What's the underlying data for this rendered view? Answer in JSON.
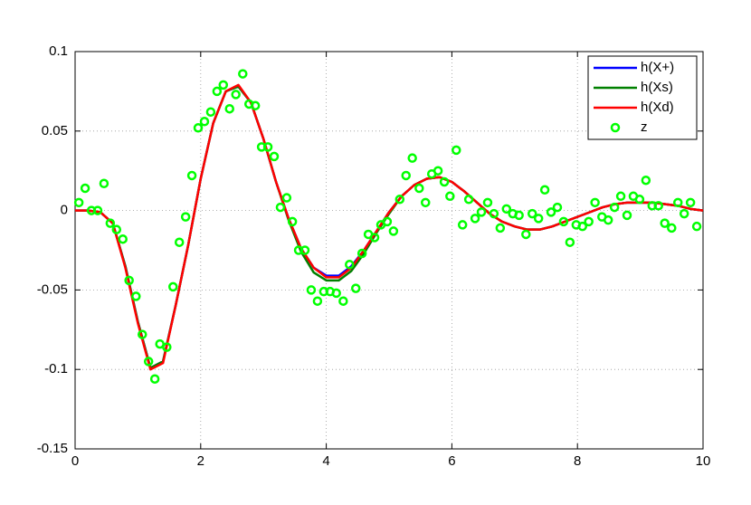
{
  "chart_data": {
    "type": "line",
    "x": [
      0,
      0.2,
      0.4,
      0.6,
      0.8,
      1.0,
      1.2,
      1.4,
      1.6,
      1.8,
      2.0,
      2.2,
      2.4,
      2.6,
      2.8,
      3.0,
      3.2,
      3.4,
      3.6,
      3.8,
      4.0,
      4.2,
      4.4,
      4.6,
      4.8,
      5.0,
      5.2,
      5.4,
      5.6,
      5.8,
      6.0,
      6.2,
      6.4,
      6.6,
      6.8,
      7.0,
      7.2,
      7.4,
      7.6,
      7.8,
      8.0,
      8.2,
      8.4,
      8.6,
      8.8,
      9.0,
      9.2,
      9.4,
      9.6,
      9.8,
      10
    ],
    "series": [
      {
        "name": "h(X+)",
        "color": "#0000ff",
        "values": [
          0,
          0,
          -0.001,
          -0.008,
          -0.035,
          -0.07,
          -0.099,
          -0.095,
          -0.06,
          -0.022,
          0.02,
          0.055,
          0.075,
          0.078,
          0.068,
          0.045,
          0.018,
          -0.005,
          -0.024,
          -0.036,
          -0.041,
          -0.041,
          -0.035,
          -0.025,
          -0.013,
          -0.001,
          0.009,
          0.016,
          0.02,
          0.021,
          0.018,
          0.012,
          0.005,
          -0.002,
          -0.007,
          -0.01,
          -0.012,
          -0.012,
          -0.01,
          -0.007,
          -0.004,
          -0.001,
          0.002,
          0.004,
          0.005,
          0.005,
          0.005,
          0.004,
          0.003,
          0.001,
          0
        ]
      },
      {
        "name": "h(Xs)",
        "color": "#008000",
        "values": [
          0,
          0,
          -0.001,
          -0.008,
          -0.035,
          -0.07,
          -0.099,
          -0.095,
          -0.06,
          -0.022,
          0.02,
          0.055,
          0.075,
          0.078,
          0.068,
          0.045,
          0.018,
          -0.006,
          -0.026,
          -0.039,
          -0.044,
          -0.044,
          -0.038,
          -0.027,
          -0.014,
          -0.002,
          0.009,
          0.016,
          0.02,
          0.021,
          0.018,
          0.012,
          0.005,
          -0.002,
          -0.007,
          -0.01,
          -0.012,
          -0.012,
          -0.01,
          -0.007,
          -0.004,
          -0.001,
          0.002,
          0.004,
          0.005,
          0.005,
          0.005,
          0.004,
          0.003,
          0.001,
          0
        ]
      },
      {
        "name": "h(Xd)",
        "color": "#ff0000",
        "values": [
          0,
          0,
          -0.001,
          -0.008,
          -0.036,
          -0.071,
          -0.1,
          -0.096,
          -0.06,
          -0.022,
          0.02,
          0.055,
          0.075,
          0.079,
          0.068,
          0.045,
          0.018,
          -0.005,
          -0.024,
          -0.036,
          -0.042,
          -0.042,
          -0.036,
          -0.025,
          -0.013,
          -0.001,
          0.009,
          0.016,
          0.02,
          0.021,
          0.018,
          0.012,
          0.005,
          -0.002,
          -0.007,
          -0.01,
          -0.012,
          -0.012,
          -0.01,
          -0.007,
          -0.004,
          -0.001,
          0.002,
          0.004,
          0.005,
          0.005,
          0.005,
          0.004,
          0.003,
          0.001,
          0
        ]
      },
      {
        "name": "z",
        "color": "#00ff00",
        "marker": "o",
        "x": [
          0.06,
          0.16,
          0.26,
          0.36,
          0.46,
          0.56,
          0.66,
          0.76,
          0.86,
          0.97,
          1.07,
          1.17,
          1.27,
          1.35,
          1.46,
          1.56,
          1.66,
          1.76,
          1.86,
          1.96,
          2.06,
          2.16,
          2.26,
          2.36,
          2.46,
          2.56,
          2.67,
          2.77,
          2.87,
          2.97,
          3.07,
          3.17,
          3.27,
          3.37,
          3.46,
          3.56,
          3.66,
          3.76,
          3.86,
          3.96,
          4.06,
          4.16,
          4.27,
          4.37,
          4.47,
          4.57,
          4.67,
          4.77,
          4.87,
          4.97,
          5.07,
          5.17,
          5.27,
          5.37,
          5.48,
          5.58,
          5.68,
          5.78,
          5.88,
          5.97,
          6.07,
          6.17,
          6.27,
          6.37,
          6.47,
          6.57,
          6.67,
          6.77,
          6.87,
          6.97,
          7.07,
          7.18,
          7.28,
          7.38,
          7.48,
          7.58,
          7.68,
          7.78,
          7.88,
          7.98,
          8.08,
          8.18,
          8.28,
          8.39,
          8.49,
          8.59,
          8.69,
          8.79,
          8.89,
          8.99,
          9.09,
          9.19,
          9.29,
          9.39,
          9.5,
          9.6,
          9.7,
          9.8,
          9.9
        ],
        "values": [
          0.005,
          0.014,
          0,
          0,
          0.017,
          -0.008,
          -0.012,
          -0.018,
          -0.044,
          -0.054,
          -0.078,
          -0.095,
          -0.106,
          -0.084,
          -0.086,
          -0.048,
          -0.02,
          -0.004,
          0.022,
          0.052,
          0.056,
          0.062,
          0.075,
          0.079,
          0.064,
          0.073,
          0.086,
          0.067,
          0.066,
          0.04,
          0.04,
          0.034,
          0.002,
          0.008,
          -0.007,
          -0.025,
          -0.025,
          -0.05,
          -0.057,
          -0.051,
          -0.051,
          -0.052,
          -0.057,
          -0.034,
          -0.049,
          -0.027,
          -0.015,
          -0.017,
          -0.009,
          -0.007,
          -0.013,
          0.007,
          0.022,
          0.033,
          0.014,
          0.005,
          0.023,
          0.025,
          0.018,
          0.009,
          0.038,
          -0.009,
          0.007,
          -0.005,
          -0.001,
          0.005,
          -0.002,
          -0.011,
          0.001,
          -0.002,
          -0.003,
          -0.015,
          -0.002,
          -0.005,
          0.013,
          -0.001,
          0.002,
          -0.007,
          -0.02,
          -0.009,
          -0.01,
          -0.007,
          0.005,
          -0.004,
          -0.006,
          0.002,
          0.009,
          -0.003,
          0.009,
          0.007,
          0.019,
          0.003,
          0.003,
          -0.008,
          -0.011,
          0.005,
          -0.002,
          0.005,
          -0.01
        ]
      }
    ],
    "xlim": [
      0,
      10
    ],
    "xticks": [
      0,
      2,
      4,
      6,
      8,
      10
    ],
    "ylim": [
      -0.15,
      0.1
    ],
    "yticks": [
      -0.15,
      -0.1,
      -0.05,
      0,
      0.05,
      0.1
    ],
    "grid": true,
    "legend": "upper right"
  }
}
